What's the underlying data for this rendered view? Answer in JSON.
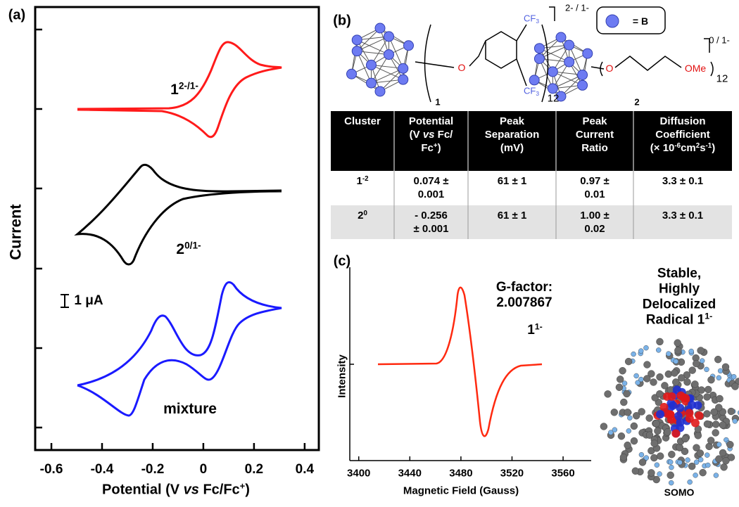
{
  "panel_a": {
    "label": "(a)",
    "y_title": [
      [
        "Current"
      ]
    ],
    "x_title": [
      [
        "Potential (V ",
        {
          "i": "vs"
        },
        " Fc/Fc",
        {
          "sup": "+"
        },
        ")"
      ]
    ],
    "xlim": [
      -0.664,
      0.456
    ],
    "xticks": [
      -0.6,
      -0.4,
      -0.2,
      0,
      0.2,
      0.4
    ],
    "traces": [
      {
        "label": [
          [
            "1",
            {
              "sup": "2-/1-"
            }
          ]
        ],
        "color": "#ff1a1a"
      },
      {
        "label": [
          [
            "2",
            {
              "sup": "0/1-"
            }
          ]
        ],
        "color": "#000000"
      },
      {
        "label": [
          [
            "mixture"
          ]
        ],
        "color": "#1a1aff"
      }
    ],
    "scale_bar": [
      [
        "1 μA"
      ]
    ]
  },
  "panel_b": {
    "label": "(b)",
    "legend": "= B",
    "cluster_1": {
      "o": "O",
      "cf3_top": [
        [
          "CF",
          {
            "sub": "3"
          }
        ]
      ],
      "cf3_bottom": [
        [
          "CF",
          {
            "sub": "3"
          }
        ]
      ],
      "count": "12",
      "charge": "2- / 1-",
      "number": "1"
    },
    "cluster_2": {
      "o": "O",
      "ome": "OMe",
      "count": "12",
      "charge": "0 / 1-",
      "number": "2"
    },
    "table": {
      "header": [
        [
          [
            "Cluster"
          ]
        ],
        [
          [
            "Potential"
          ],
          [
            "(V ",
            {
              "i": "vs"
            },
            " Fc/"
          ],
          [
            "Fc",
            {
              "sup": "+"
            },
            ")"
          ]
        ],
        [
          [
            "Peak"
          ],
          [
            "Separation"
          ],
          [
            "(mV)"
          ]
        ],
        [
          [
            "Peak"
          ],
          [
            "Current"
          ],
          [
            "Ratio"
          ]
        ],
        [
          [
            "Diffusion"
          ],
          [
            "Coefficient"
          ],
          [
            "(× 10",
            {
              "sup": "-6"
            },
            "cm",
            {
              "sup": "2"
            },
            "s",
            {
              "sup": "-1"
            },
            ")"
          ]
        ]
      ],
      "rows": [
        [
          [
            [
              "1",
              {
                "sup": "-2"
              }
            ]
          ],
          [
            [
              "0.074 ±"
            ],
            [
              "0.001"
            ]
          ],
          [
            [
              "61 ± 1"
            ]
          ],
          [
            [
              "0.97 ±"
            ],
            [
              "0.01"
            ]
          ],
          [
            [
              "3.3 ± 0.1"
            ]
          ]
        ],
        [
          [
            [
              "2",
              {
                "sup": "0"
              }
            ]
          ],
          [
            [
              "- 0.256"
            ],
            [
              "± 0.001"
            ]
          ],
          [
            [
              "61 ± 1"
            ]
          ],
          [
            [
              "1.00 ±"
            ],
            [
              "0.02"
            ]
          ],
          [
            [
              "3.3 ± 0.1"
            ]
          ]
        ]
      ]
    }
  },
  "panel_c": {
    "label": "(c)",
    "y_title": [
      [
        "Intensity"
      ]
    ],
    "x_title": [
      [
        "Magnetic Field (Gauss)"
      ]
    ],
    "xlim": [
      3393,
      3582
    ],
    "xticks": [
      3400,
      3440,
      3480,
      3520,
      3560
    ],
    "color": "#ff2a10",
    "annotation": [
      [
        "G-factor:"
      ],
      [
        "2.007867"
      ]
    ],
    "species": [
      [
        "1",
        {
          "sup": "1-"
        }
      ]
    ],
    "caption": [
      [
        "Stable,"
      ],
      [
        "Highly"
      ],
      [
        "Delocalized"
      ],
      [
        "Radical 1",
        {
          "sup": "1-"
        }
      ]
    ],
    "orbital": [
      [
        "SOMO"
      ]
    ]
  }
}
